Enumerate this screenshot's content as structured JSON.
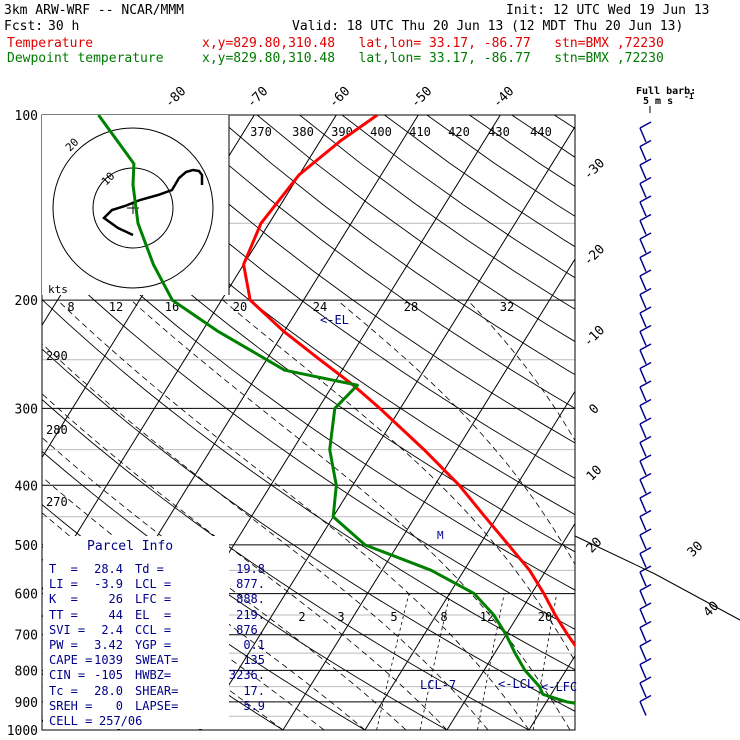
{
  "header": {
    "model": "3km ARW-WRF -- NCAR/MMM",
    "init": "Init: 12 UTC Wed 19 Jun 13",
    "fcst_label": "Fcst:",
    "fcst_value": "30 h",
    "valid": "Valid: 18 UTC Thu 20 Jun 13 (12 MDT Thu 20 Jun 13)",
    "temp_label": "Temperature",
    "temp_loc": "x,y=829.80,310.48   lat,lon= 33.17, -86.77   stn=BMX ,72230",
    "dew_label": "Dewpoint temperature",
    "dew_loc": "x,y=829.80,310.48   lat,lon= 33.17, -86.77   stn=BMX ,72230"
  },
  "colors": {
    "temperature": "#ff0000",
    "dewpoint": "#008000",
    "wind": "#00008b",
    "axes": "#000000"
  },
  "chart_data": {
    "type": "line",
    "title": "",
    "ylabel": "",
    "pressure_ticks": [
      100,
      200,
      300,
      400,
      500,
      600,
      700,
      800,
      900,
      1000
    ],
    "isotherm_labels": [
      "-80",
      "-70",
      "-60",
      "-50",
      "-40",
      "-30",
      "-20",
      "-10",
      "0",
      "10",
      "20",
      "30",
      "40"
    ],
    "theta_e_labels": [
      "370",
      "380",
      "390",
      "400",
      "410",
      "420",
      "430",
      "440"
    ],
    "mixing_ratio_labels": [
      "2",
      "3",
      "5",
      "8",
      "12",
      "20"
    ],
    "dry_adiabat_labels": [
      "290",
      "280",
      "270"
    ],
    "hodograph": {
      "unit_label": "kts",
      "ring_labels": [
        "20",
        "10"
      ],
      "speed_ticks": [
        "8",
        "12",
        "16",
        "20",
        "24",
        "28",
        "32"
      ]
    },
    "barb_key": {
      "title": "Full barb:",
      "value": "5 m s",
      "exponent": "-1"
    },
    "annotations": {
      "el": "<-EL",
      "lcl": "LCL-7",
      "lcl2": "<-LCL",
      "lfc": "<-LFC",
      "m": "M"
    },
    "series": [
      {
        "name": "Temperature",
        "points": [
          [
            1000,
            27.5
          ],
          [
            975,
            24.8
          ],
          [
            950,
            22.0
          ],
          [
            925,
            20.5
          ],
          [
            900,
            19.5
          ],
          [
            875,
            18.3
          ],
          [
            850,
            16.5
          ],
          [
            800,
            13.5
          ],
          [
            750,
            10.5
          ],
          [
            700,
            7.5
          ],
          [
            650,
            4.5
          ],
          [
            600,
            1.5
          ],
          [
            550,
            -2.0
          ],
          [
            500,
            -6.5
          ],
          [
            450,
            -11.5
          ],
          [
            400,
            -17.0
          ],
          [
            350,
            -24.0
          ],
          [
            300,
            -32.5
          ],
          [
            275,
            -37.5
          ],
          [
            250,
            -43.5
          ],
          [
            225,
            -50.0
          ],
          [
            200,
            -56.5
          ],
          [
            175,
            -60.0
          ],
          [
            150,
            -61.0
          ],
          [
            125,
            -60.0
          ],
          [
            110,
            -57.5
          ],
          [
            100,
            -55.0
          ]
        ]
      },
      {
        "name": "Dewpoint temperature",
        "points": [
          [
            1000,
            19.5
          ],
          [
            975,
            19.0
          ],
          [
            950,
            19.0
          ],
          [
            925,
            18.5
          ],
          [
            900,
            12.5
          ],
          [
            875,
            9.0
          ],
          [
            850,
            8.0
          ],
          [
            800,
            5.0
          ],
          [
            750,
            2.5
          ],
          [
            700,
            0.0
          ],
          [
            650,
            -3.0
          ],
          [
            600,
            -7.0
          ],
          [
            550,
            -14.0
          ],
          [
            500,
            -24.0
          ],
          [
            450,
            -30.0
          ],
          [
            400,
            -32.0
          ],
          [
            350,
            -35.5
          ],
          [
            300,
            -38.0
          ],
          [
            275,
            -37.0
          ],
          [
            260,
            -47.0
          ],
          [
            225,
            -58.0
          ],
          [
            200,
            -66.0
          ],
          [
            175,
            -71.0
          ],
          [
            150,
            -76.0
          ],
          [
            130,
            -79.5
          ],
          [
            120,
            -81.0
          ],
          [
            100,
            -89.0
          ]
        ]
      }
    ]
  },
  "parcel_info": {
    "title": "Parcel Info",
    "rows": [
      [
        "T  =",
        "28.4",
        "Td =",
        "19.8"
      ],
      [
        "LI =",
        "-3.9",
        "LCL =",
        "877."
      ],
      [
        "K  =",
        "26",
        "LFC =",
        "888."
      ],
      [
        "TT =",
        "44",
        "EL  =",
        "219."
      ],
      [
        "SVI =",
        "2.4",
        "CCL =",
        "876."
      ],
      [
        "PW =",
        "3.42",
        "YGP =",
        "0.1"
      ],
      [
        "CAPE =",
        "1039",
        "SWEAT=",
        "135"
      ],
      [
        "CIN =",
        "-105",
        "HWBZ=",
        "3236."
      ],
      [
        "Tc =",
        "28.0",
        "SHEAR=",
        "17."
      ],
      [
        "SREH =",
        "0",
        "LAPSE=",
        "5.9"
      ]
    ],
    "cell_label": "CELL =",
    "cell_value": "257/06"
  }
}
